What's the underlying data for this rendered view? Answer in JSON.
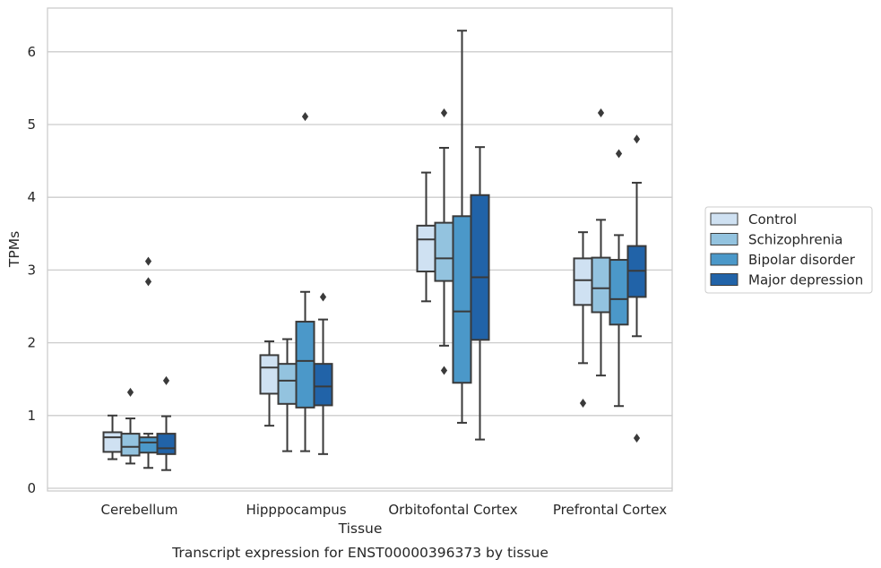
{
  "chart_data": {
    "type": "box",
    "title": "",
    "caption": "Transcript expression for ENST00000396373 by tissue",
    "xlabel": "Tissue",
    "ylabel": "TPMs",
    "ylim": [
      -0.05,
      6.6
    ],
    "yticks": [
      0,
      1,
      2,
      3,
      4,
      5,
      6
    ],
    "grid": "horizontal",
    "legend_position": "right",
    "categories": [
      "Cerebellum",
      "Hipppocampus",
      "Orbitofontal Cortex",
      "Prefrontal Cortex"
    ],
    "series": [
      {
        "name": "Control",
        "color": "#cfe1f2",
        "boxes": [
          {
            "whislo": 0.4,
            "q1": 0.5,
            "med": 0.7,
            "q3": 0.77,
            "whishi": 1.0,
            "fliers": []
          },
          {
            "whislo": 0.86,
            "q1": 1.3,
            "med": 1.66,
            "q3": 1.83,
            "whishi": 2.02,
            "fliers": []
          },
          {
            "whislo": 2.57,
            "q1": 2.98,
            "med": 3.42,
            "q3": 3.61,
            "whishi": 4.34,
            "fliers": []
          },
          {
            "whislo": 1.72,
            "q1": 2.52,
            "med": 2.86,
            "q3": 3.16,
            "whishi": 3.52,
            "fliers": [
              1.17
            ]
          }
        ]
      },
      {
        "name": "Schizophrenia",
        "color": "#93c3df",
        "boxes": [
          {
            "whislo": 0.34,
            "q1": 0.45,
            "med": 0.57,
            "q3": 0.75,
            "whishi": 0.96,
            "fliers": [
              1.32
            ]
          },
          {
            "whislo": 0.51,
            "q1": 1.16,
            "med": 1.48,
            "q3": 1.71,
            "whishi": 2.05,
            "fliers": []
          },
          {
            "whislo": 1.96,
            "q1": 2.85,
            "med": 3.16,
            "q3": 3.65,
            "whishi": 4.68,
            "fliers": [
              1.62,
              5.16
            ]
          },
          {
            "whislo": 1.55,
            "q1": 2.42,
            "med": 2.75,
            "q3": 3.17,
            "whishi": 3.69,
            "fliers": [
              5.16
            ]
          }
        ]
      },
      {
        "name": "Bipolar disorder",
        "color": "#4b98c9",
        "boxes": [
          {
            "whislo": 0.28,
            "q1": 0.49,
            "med": 0.63,
            "q3": 0.7,
            "whishi": 0.75,
            "fliers": [
              2.84,
              3.12
            ]
          },
          {
            "whislo": 0.51,
            "q1": 1.11,
            "med": 1.75,
            "q3": 2.29,
            "whishi": 2.7,
            "fliers": [
              5.11
            ]
          },
          {
            "whislo": 0.9,
            "q1": 1.45,
            "med": 2.43,
            "q3": 3.74,
            "whishi": 6.29,
            "fliers": []
          },
          {
            "whislo": 1.13,
            "q1": 2.25,
            "med": 2.6,
            "q3": 3.14,
            "whishi": 3.48,
            "fliers": [
              4.6
            ]
          }
        ]
      },
      {
        "name": "Major depression",
        "color": "#2163a8",
        "boxes": [
          {
            "whislo": 0.25,
            "q1": 0.47,
            "med": 0.55,
            "q3": 0.75,
            "whishi": 0.99,
            "fliers": [
              1.48
            ]
          },
          {
            "whislo": 0.47,
            "q1": 1.14,
            "med": 1.4,
            "q3": 1.71,
            "whishi": 2.32,
            "fliers": [
              2.63
            ]
          },
          {
            "whislo": 0.67,
            "q1": 2.04,
            "med": 2.9,
            "q3": 4.03,
            "whishi": 4.69,
            "fliers": []
          },
          {
            "whislo": 2.09,
            "q1": 2.63,
            "med": 2.99,
            "q3": 3.33,
            "whishi": 4.2,
            "fliers": [
              0.69,
              4.8
            ]
          }
        ]
      }
    ]
  }
}
